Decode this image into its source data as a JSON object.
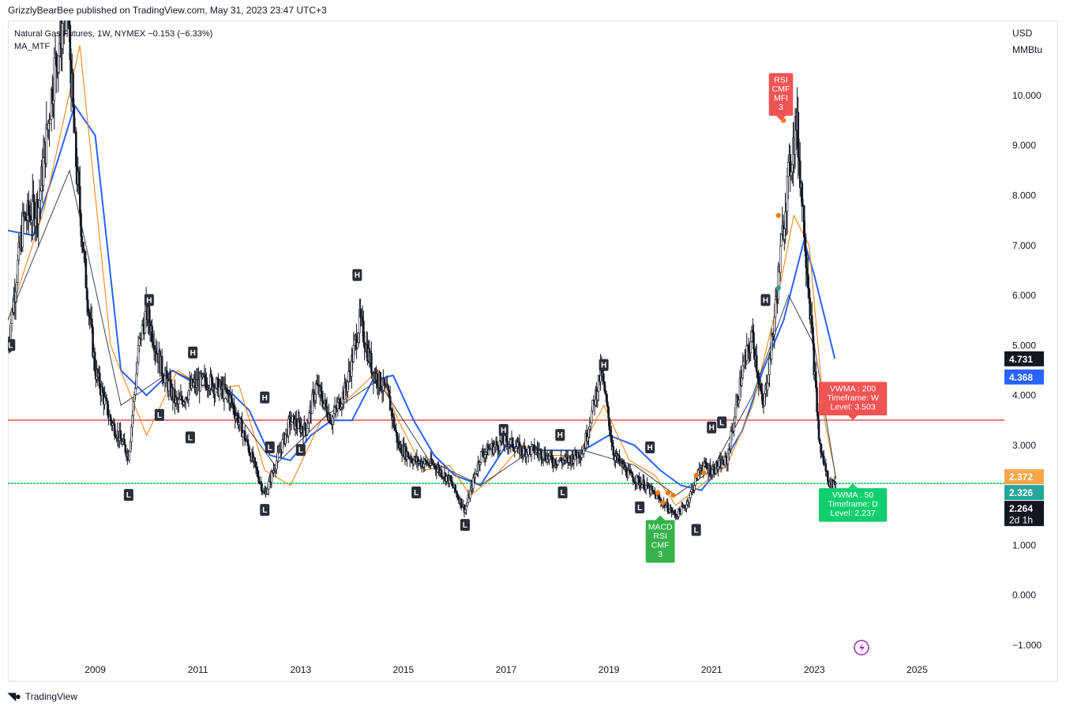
{
  "header": {
    "publisher_text": "GrizzlyBearBee published on TradingView.com, May 31, 2023 23:47 UTC+3"
  },
  "legend": {
    "symbol_line": "Natural Gas Futures, 1W, NYMEX  −0.153 (−6.33%)",
    "indicator": "MA_MTF"
  },
  "axis": {
    "currency": "USD",
    "unit": "MMBtu"
  },
  "footer": {
    "brand": "TradingView",
    "logo_icon": "tradingview-logo-icon"
  },
  "colors": {
    "candle": "#131722",
    "ma_blue": "#2962ff",
    "ma_orange": "#f57c00",
    "ma_teal": "#26a69a",
    "ma_purple": "#9c27b0",
    "ma_dark": "#434651",
    "resistance": "#ef5350",
    "support": "#00c853",
    "label_red": "#f25454",
    "label_green": "#36b24a",
    "label_vwma_green": "#0fcf6e"
  },
  "chart_data": {
    "type": "line",
    "symbol": "Natural Gas Futures",
    "timeframe": "1W",
    "exchange": "NYMEX",
    "ylim": [
      -1.3,
      11.5
    ],
    "yticks": [
      "10.000",
      "9.000",
      "8.000",
      "7.000",
      "6.000",
      "5.000",
      "4.000",
      "3.000",
      "2.000",
      "1.000",
      "0.000",
      "−1.000"
    ],
    "ytick_values": [
      10,
      9,
      8,
      7,
      6,
      5,
      4,
      3,
      2,
      1,
      0,
      -1
    ],
    "xlim": [
      2007.3,
      2026.7
    ],
    "xticks": [
      "2009",
      "2011",
      "2013",
      "2015",
      "2017",
      "2019",
      "2021",
      "2023",
      "2025"
    ],
    "xtick_values": [
      2009,
      2011,
      2013,
      2015,
      2017,
      2019,
      2021,
      2023,
      2025
    ],
    "price_series": {
      "x": [
        2007.3,
        2007.6,
        2007.9,
        2008.2,
        2008.45,
        2008.6,
        2008.8,
        2009.0,
        2009.3,
        2009.65,
        2009.85,
        2010.0,
        2010.3,
        2010.6,
        2010.9,
        2011.2,
        2011.6,
        2011.9,
        2012.3,
        2012.5,
        2012.8,
        2013.1,
        2013.3,
        2013.6,
        2013.9,
        2014.15,
        2014.4,
        2014.7,
        2014.9,
        2015.2,
        2015.6,
        2015.9,
        2016.2,
        2016.5,
        2016.8,
        2017.0,
        2017.3,
        2017.6,
        2017.9,
        2018.2,
        2018.5,
        2018.85,
        2019.1,
        2019.4,
        2019.7,
        2020.0,
        2020.3,
        2020.5,
        2020.8,
        2021.0,
        2021.3,
        2021.6,
        2021.8,
        2022.0,
        2022.2,
        2022.45,
        2022.65,
        2022.9,
        2023.1,
        2023.3,
        2023.42
      ],
      "y": [
        5.0,
        7.5,
        7.8,
        10.5,
        12.0,
        9.0,
        6.5,
        4.5,
        3.5,
        2.8,
        5.0,
        5.7,
        4.5,
        3.8,
        4.2,
        4.3,
        4.0,
        3.2,
        2.0,
        2.6,
        3.5,
        3.3,
        4.2,
        3.5,
        4.2,
        5.5,
        4.5,
        4.0,
        3.0,
        2.7,
        2.6,
        2.3,
        1.7,
        2.8,
        3.0,
        3.1,
        2.9,
        2.9,
        2.7,
        2.7,
        2.9,
        4.5,
        2.8,
        2.4,
        2.2,
        1.9,
        1.6,
        1.8,
        2.6,
        2.5,
        2.7,
        4.5,
        5.2,
        3.7,
        5.3,
        8.0,
        9.5,
        6.0,
        3.0,
        2.2,
        2.264
      ]
    },
    "moving_averages": [
      {
        "x": [
          2007.3,
          2007.8,
          2008.3,
          2008.6,
          2009.0,
          2009.5,
          2010.0,
          2010.5,
          2011.0,
          2011.5,
          2012.0,
          2012.4,
          2012.8,
          2013.2,
          2013.6,
          2014.0,
          2014.4,
          2014.8,
          2015.2,
          2015.6,
          2016.0,
          2016.5,
          2017.0,
          2017.5,
          2018.0,
          2018.5,
          2019.0,
          2019.5,
          2020.0,
          2020.4,
          2020.8,
          2021.2,
          2021.6,
          2022.0,
          2022.4,
          2022.8,
          2023.0,
          2023.4
        ],
        "y": [
          7.3,
          7.2,
          8.8,
          9.8,
          9.2,
          4.5,
          4.0,
          4.5,
          4.2,
          4.2,
          3.7,
          2.8,
          2.7,
          3.2,
          3.5,
          3.5,
          4.3,
          4.4,
          3.5,
          2.8,
          2.4,
          2.2,
          3.0,
          2.9,
          2.9,
          2.9,
          3.2,
          3.0,
          2.5,
          2.2,
          2.1,
          2.6,
          3.3,
          4.5,
          5.5,
          7.1,
          6.4,
          4.731
        ]
      },
      {
        "x": [
          2007.3,
          2008.0,
          2008.7,
          2009.3,
          2010.0,
          2010.6,
          2011.2,
          2011.8,
          2012.3,
          2012.8,
          2013.4,
          2014.0,
          2014.5,
          2014.9,
          2015.4,
          2015.9,
          2016.3,
          2016.8,
          2017.3,
          2017.9,
          2018.4,
          2018.9,
          2019.4,
          2019.9,
          2020.3,
          2020.8,
          2021.3,
          2021.8,
          2022.2,
          2022.6,
          2022.9,
          2023.2,
          2023.42
        ],
        "y": [
          5.5,
          7.7,
          11.0,
          5.0,
          3.2,
          4.5,
          4.1,
          4.2,
          2.5,
          2.2,
          3.5,
          4.0,
          4.5,
          3.5,
          2.5,
          2.6,
          2.0,
          2.4,
          3.0,
          2.8,
          2.8,
          3.8,
          2.7,
          2.4,
          1.8,
          2.2,
          2.6,
          3.8,
          5.5,
          7.6,
          7.0,
          3.5,
          2.372
        ]
      },
      {
        "x": [
          2007.3,
          2008.5,
          2009.5,
          2010.5,
          2011.5,
          2012.5,
          2013.5,
          2014.5,
          2015.5,
          2016.5,
          2017.5,
          2018.5,
          2019.5,
          2020.3,
          2021.0,
          2021.8,
          2022.5,
          2023.0,
          2023.42
        ],
        "y": [
          5.5,
          8.5,
          3.8,
          4.5,
          4.0,
          2.6,
          3.6,
          4.3,
          2.7,
          2.2,
          2.9,
          2.9,
          2.6,
          2.0,
          2.5,
          4.0,
          6.0,
          5.0,
          2.326
        ]
      }
    ],
    "pivots": [
      {
        "type": "H",
        "x": 2010.05,
        "y": 5.9
      },
      {
        "type": "H",
        "x": 2010.9,
        "y": 4.85
      },
      {
        "type": "H",
        "x": 2012.3,
        "y": 3.95
      },
      {
        "type": "H",
        "x": 2014.1,
        "y": 6.4
      },
      {
        "type": "H",
        "x": 2016.95,
        "y": 3.3
      },
      {
        "type": "H",
        "x": 2018.05,
        "y": 3.2
      },
      {
        "type": "H",
        "x": 2018.9,
        "y": 4.6
      },
      {
        "type": "H",
        "x": 2019.8,
        "y": 2.95
      },
      {
        "type": "H",
        "x": 2021.0,
        "y": 3.35
      },
      {
        "type": "H",
        "x": 2022.05,
        "y": 5.9
      },
      {
        "type": "L",
        "x": 2007.35,
        "y": 5.0
      },
      {
        "type": "L",
        "x": 2009.65,
        "y": 2.0
      },
      {
        "type": "L",
        "x": 2010.25,
        "y": 3.6
      },
      {
        "type": "L",
        "x": 2010.85,
        "y": 3.15
      },
      {
        "type": "L",
        "x": 2012.3,
        "y": 1.7
      },
      {
        "type": "L",
        "x": 2012.4,
        "y": 2.95
      },
      {
        "type": "L",
        "x": 2013.0,
        "y": 2.9
      },
      {
        "type": "L",
        "x": 2015.25,
        "y": 2.05
      },
      {
        "type": "L",
        "x": 2016.2,
        "y": 1.4
      },
      {
        "type": "L",
        "x": 2018.1,
        "y": 2.05
      },
      {
        "type": "L",
        "x": 2019.6,
        "y": 1.75
      },
      {
        "type": "L",
        "x": 2020.7,
        "y": 1.3
      },
      {
        "type": "L",
        "x": 2021.2,
        "y": 3.45
      }
    ],
    "horizontal_lines": [
      {
        "value": 3.503,
        "color": "#ef5350"
      },
      {
        "value": 2.237,
        "color": "#00c853"
      }
    ],
    "callouts": [
      {
        "lines": [
          "RSI",
          "CMF",
          "MFI",
          "3"
        ],
        "x": 2022.35,
        "y": 9.5,
        "color": "#f25454",
        "direction": "down"
      },
      {
        "lines": [
          "MACD",
          "RSI",
          "CMF",
          "3"
        ],
        "x": 2020.0,
        "y": 1.6,
        "color": "#36b24a",
        "direction": "up"
      },
      {
        "lines": [
          "VWMA : 200",
          "Timeframe: W",
          "Level: 3.503"
        ],
        "x": 2023.75,
        "y": 3.503,
        "color": "#f25454",
        "direction": "down"
      },
      {
        "lines": [
          "VWMA : 50",
          "Timeframe: D",
          "Level: 2.237"
        ],
        "x": 2023.75,
        "y": 2.237,
        "color": "#0fcf6e",
        "direction": "up"
      }
    ],
    "markers": [
      {
        "x": 2022.3,
        "y": 7.6,
        "color": "#f57c00"
      },
      {
        "x": 2022.3,
        "y": 6.15,
        "color": "#26a69a"
      },
      {
        "x": 2022.4,
        "y": 9.5,
        "color": "#f57c00"
      },
      {
        "x": 2019.95,
        "y": 2.05,
        "color": "#f57c00"
      },
      {
        "x": 2020.05,
        "y": 1.85,
        "color": "#f57c00"
      },
      {
        "x": 2020.15,
        "y": 2.05,
        "color": "#f57c00"
      },
      {
        "x": 2020.25,
        "y": 2.0,
        "color": "#f57c00"
      },
      {
        "x": 2020.7,
        "y": 2.4,
        "color": "#f57c00"
      },
      {
        "x": 2020.85,
        "y": 2.45,
        "color": "#f57c00"
      }
    ],
    "price_tags": [
      {
        "label": "4.731",
        "value": 4.731,
        "color": "#131722"
      },
      {
        "label": "4.368",
        "value": 4.368,
        "color": "#2962ff"
      },
      {
        "label": "2.372",
        "value": 2.372,
        "color": "#f7a64a"
      },
      {
        "label": "2.326",
        "value": 2.326,
        "color": "#26a69a"
      },
      {
        "label": "2.264",
        "value": 2.264,
        "color": "#131722",
        "sublabel": "2d 1h"
      }
    ],
    "grid": false
  }
}
